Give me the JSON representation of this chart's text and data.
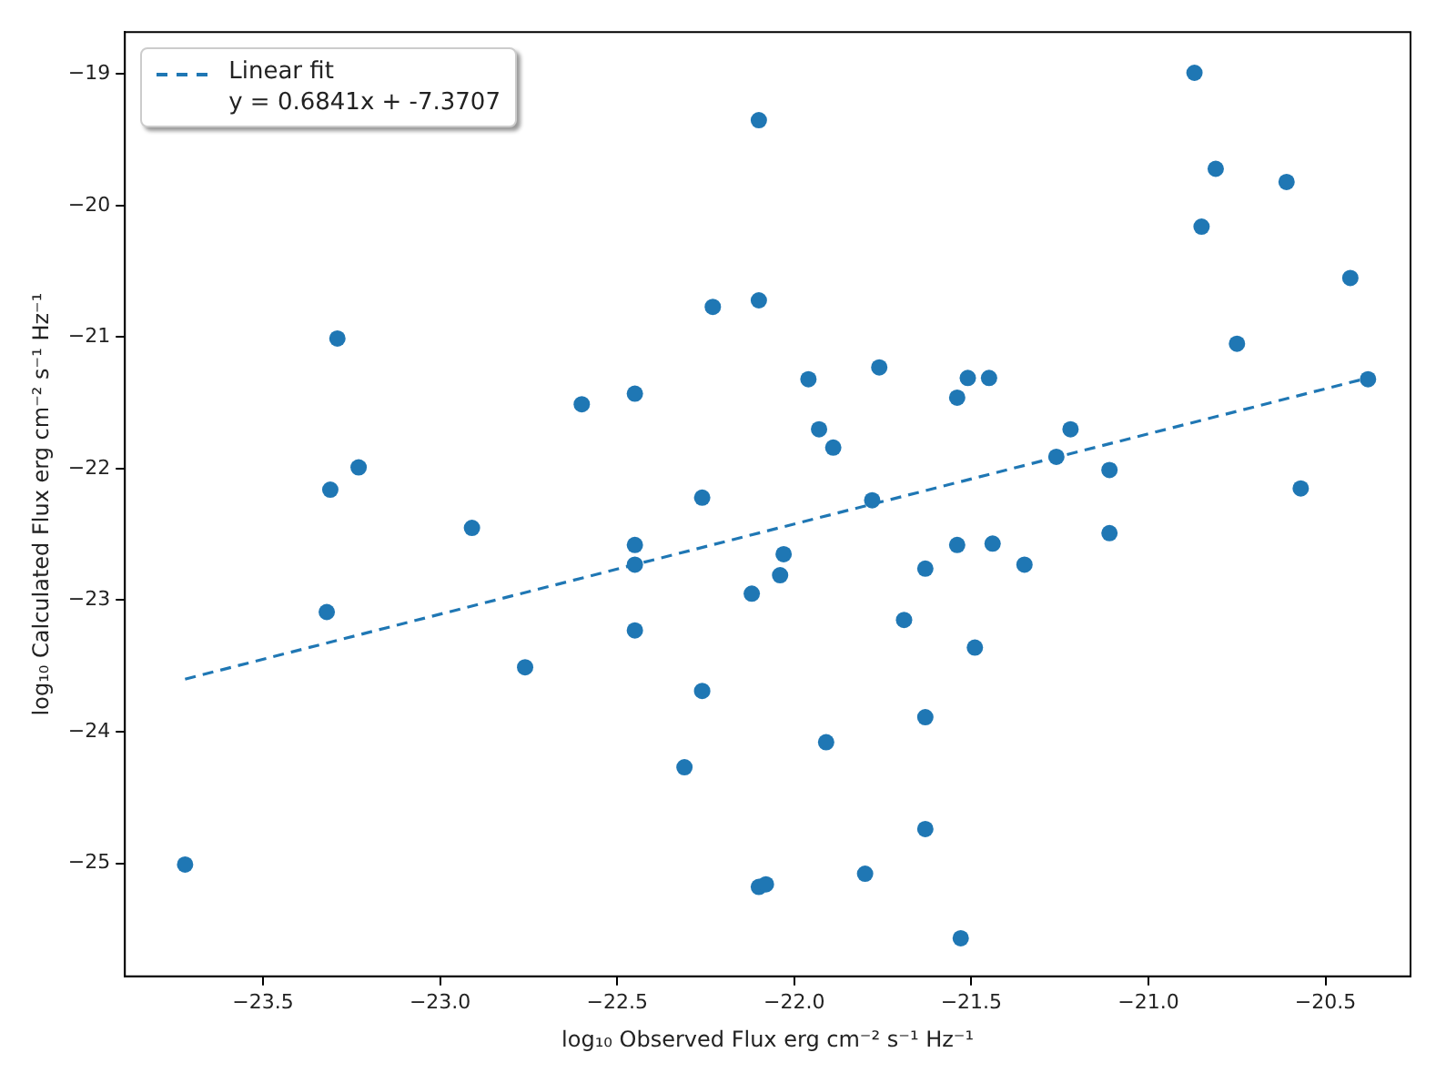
{
  "chart_data": {
    "type": "scatter",
    "xlabel": "log₁₀ Observed Flux erg cm⁻² s⁻¹ Hz⁻¹",
    "ylabel": "log₁₀ Calculated Flux erg cm⁻² s⁻¹ Hz⁻¹",
    "xlim": [
      -23.89,
      -20.26
    ],
    "ylim": [
      -25.86,
      -18.68
    ],
    "xticks": [
      -23.5,
      {
        "value": -23,
        "label": "−23.0"
      },
      -22.5,
      {
        "value": -22,
        "label": "−22.0"
      },
      -21.5,
      {
        "value": -21,
        "label": "−21.0"
      },
      -20.5
    ],
    "yticks": [
      -25,
      -24,
      -23,
      -22,
      -21,
      -20,
      -19
    ],
    "grid": false,
    "legend": "top left",
    "marker": "circle",
    "series": [
      {
        "color": "#1f77b4",
        "x": [
          -23.72,
          -23.32,
          -23.31,
          -23.29,
          -23.23,
          -22.91,
          -22.76,
          -22.6,
          -22.45,
          -22.45,
          -22.45,
          -22.45,
          -22.26,
          -22.23,
          -22.26,
          -22.31,
          -22.1,
          -22.1,
          -22.12,
          -22.1,
          -22.08,
          -22.04,
          -22.03,
          -21.96,
          -21.76,
          -21.93,
          -21.89,
          -21.78,
          -21.54,
          -21.51,
          -21.45,
          -21.26,
          -21.22,
          -21.11,
          -20.87,
          -20.81,
          -20.85,
          -20.61,
          -20.43,
          -20.75,
          -20.38,
          -20.57,
          -21.63,
          -21.54,
          -21.44,
          -21.35,
          -21.11,
          -21.69,
          -21.49,
          -21.63,
          -21.91,
          -21.63,
          -21.8,
          -21.53
        ],
        "values": [
          -25.01,
          -23.09,
          -22.16,
          -21.01,
          -21.99,
          -22.45,
          -23.51,
          -21.51,
          -21.43,
          -22.58,
          -22.73,
          -23.23,
          -22.22,
          -20.77,
          -23.69,
          -24.27,
          -19.35,
          -20.72,
          -22.95,
          -25.18,
          -25.16,
          -22.81,
          -22.65,
          -21.32,
          -21.23,
          -21.7,
          -21.84,
          -22.24,
          -21.46,
          -21.31,
          -21.31,
          -21.91,
          -21.7,
          -22.01,
          -18.99,
          -19.72,
          -20.16,
          -19.82,
          -20.55,
          -21.05,
          -21.32,
          -22.15,
          -22.76,
          -22.58,
          -22.57,
          -22.73,
          -22.49,
          -23.15,
          -23.36,
          -23.89,
          -24.08,
          -24.74,
          -25.08,
          -25.57
        ]
      },
      {
        "type": "line",
        "name": "Linear fit\ny = 0.6841x + -7.3707",
        "color": "#1f77b4",
        "marker": "none",
        "line_style": "dashed",
        "x": [
          -23.72,
          -20.38
        ],
        "values": [
          -23.6,
          -21.31
        ]
      }
    ]
  }
}
